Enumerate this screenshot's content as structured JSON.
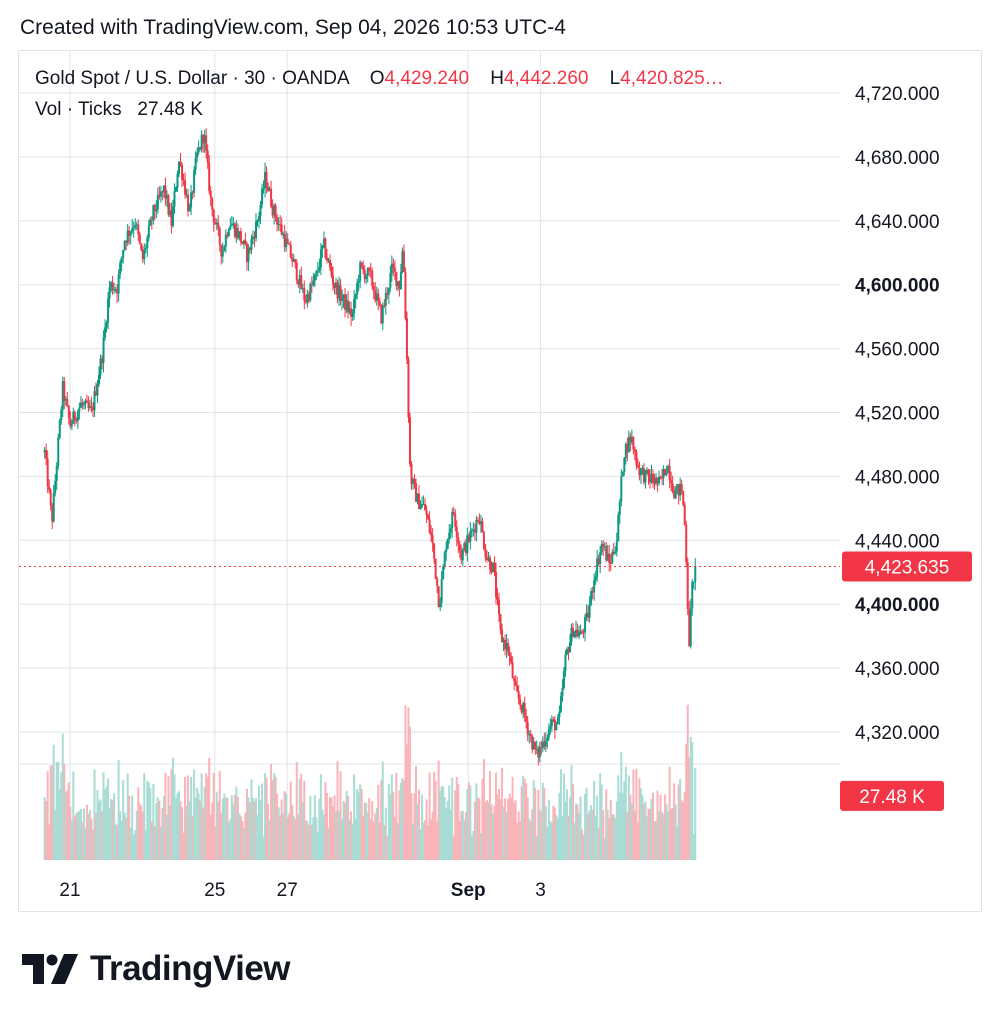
{
  "caption": "Created with TradingView.com, Sep 04, 2026 10:53 UTC-4",
  "legend": {
    "symbol": "Gold Spot / U.S. Dollar · 30 · OANDA",
    "o_label": "O",
    "o_value": "4,429.240",
    "h_label": "H",
    "h_value": "4,442.260",
    "l_label": "L",
    "l_value": "4,420.825…",
    "vol_label": "Vol · Ticks",
    "vol_value": "27.48 K"
  },
  "brand": {
    "name": "TradingView"
  },
  "colors": {
    "up": "#089981",
    "down": "#f23645",
    "up_vol": "#a8dcd4",
    "down_vol": "#f9b4b9",
    "grid": "#e0e3eb",
    "text": "#131722"
  },
  "chart_data": {
    "type": "candlestick",
    "interval": "30",
    "ylim": [
      4290,
      4742
    ],
    "y_ticks": [
      "4,720.000",
      "4,680.000",
      "4,640.000",
      "4,600.000",
      "4,560.000",
      "4,520.000",
      "4,480.000",
      "4,440.000",
      "4,400.000",
      "4,360.000",
      "4,320.000"
    ],
    "y_tick_values": [
      4720,
      4680,
      4640,
      4600,
      4560,
      4520,
      4480,
      4440,
      4400,
      4360,
      4320
    ],
    "bold_ticks": [
      "4,600.000",
      "4,400.000"
    ],
    "x_ticks": [
      {
        "label": "21",
        "day": 0,
        "bold": false
      },
      {
        "label": "25",
        "day": 4,
        "bold": false
      },
      {
        "label": "27",
        "day": 6,
        "bold": false
      },
      {
        "label": "Sep",
        "day": 11,
        "bold": true
      },
      {
        "label": "3",
        "day": 13,
        "bold": false
      }
    ],
    "current_price": 4423.635,
    "current_price_label": "4,423.635",
    "current_volume_label": "27.48 K",
    "price_path": [
      [
        -0.7,
        4495
      ],
      [
        -0.5,
        4452
      ],
      [
        -0.2,
        4535
      ],
      [
        0.0,
        4512
      ],
      [
        0.3,
        4525
      ],
      [
        0.6,
        4520
      ],
      [
        0.9,
        4558
      ],
      [
        1.1,
        4600
      ],
      [
        1.3,
        4598
      ],
      [
        1.5,
        4628
      ],
      [
        1.8,
        4640
      ],
      [
        2.0,
        4615
      ],
      [
        2.3,
        4645
      ],
      [
        2.6,
        4660
      ],
      [
        2.8,
        4638
      ],
      [
        3.0,
        4678
      ],
      [
        3.1,
        4670
      ],
      [
        3.3,
        4645
      ],
      [
        3.5,
        4680
      ],
      [
        3.7,
        4695
      ],
      [
        3.9,
        4650
      ],
      [
        4.2,
        4620
      ],
      [
        4.4,
        4640
      ],
      [
        4.7,
        4630
      ],
      [
        4.9,
        4618
      ],
      [
        5.2,
        4642
      ],
      [
        5.4,
        4668
      ],
      [
        5.6,
        4648
      ],
      [
        5.9,
        4630
      ],
      [
        6.2,
        4612
      ],
      [
        6.5,
        4590
      ],
      [
        6.8,
        4605
      ],
      [
        7.0,
        4625
      ],
      [
        7.3,
        4600
      ],
      [
        7.5,
        4592
      ],
      [
        7.8,
        4580
      ],
      [
        8.0,
        4610
      ],
      [
        8.3,
        4605
      ],
      [
        8.6,
        4580
      ],
      [
        8.9,
        4610
      ],
      [
        9.1,
        4600
      ],
      [
        9.2,
        4625
      ],
      [
        9.3,
        4560
      ],
      [
        9.4,
        4480
      ],
      [
        9.6,
        4465
      ],
      [
        9.8,
        4460
      ],
      [
        10.0,
        4440
      ],
      [
        10.2,
        4400
      ],
      [
        10.4,
        4440
      ],
      [
        10.6,
        4458
      ],
      [
        10.8,
        4430
      ],
      [
        11.1,
        4445
      ],
      [
        11.3,
        4456
      ],
      [
        11.5,
        4430
      ],
      [
        11.7,
        4422
      ],
      [
        11.8,
        4400
      ],
      [
        11.9,
        4380
      ],
      [
        12.1,
        4372
      ],
      [
        12.3,
        4345
      ],
      [
        12.5,
        4335
      ],
      [
        12.7,
        4318
      ],
      [
        12.9,
        4305
      ],
      [
        13.1,
        4315
      ],
      [
        13.3,
        4325
      ],
      [
        13.5,
        4325
      ],
      [
        13.7,
        4368
      ],
      [
        13.9,
        4385
      ],
      [
        14.1,
        4380
      ],
      [
        14.3,
        4392
      ],
      [
        14.5,
        4420
      ],
      [
        14.7,
        4438
      ],
      [
        14.9,
        4425
      ],
      [
        15.1,
        4440
      ],
      [
        15.3,
        4495
      ],
      [
        15.5,
        4505
      ],
      [
        15.7,
        4485
      ],
      [
        15.9,
        4480
      ],
      [
        16.1,
        4478
      ],
      [
        16.3,
        4475
      ],
      [
        16.5,
        4488
      ],
      [
        16.7,
        4470
      ],
      [
        16.9,
        4472
      ],
      [
        17.0,
        4445
      ],
      [
        17.1,
        4375
      ],
      [
        17.2,
        4415
      ],
      [
        17.3,
        4423.6
      ]
    ]
  }
}
